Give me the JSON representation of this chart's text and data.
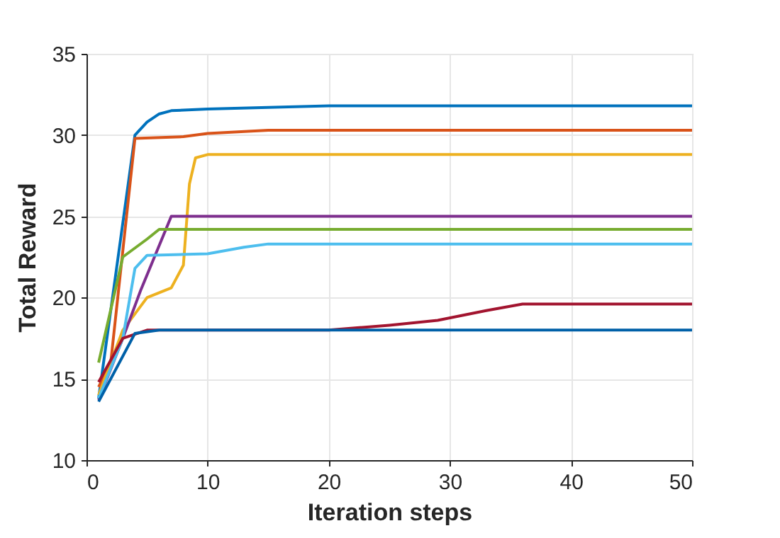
{
  "chart_data": {
    "type": "line",
    "xlabel": "Iteration steps",
    "ylabel": "Total Reward",
    "xlim": [
      0,
      50
    ],
    "xticks": [
      0,
      10,
      20,
      30,
      40,
      50
    ],
    "ylim": [
      10,
      35
    ],
    "yticks": [
      10,
      15,
      20,
      25,
      30,
      35
    ],
    "grid": true,
    "marker": "none",
    "line_style": "solid",
    "series": [
      {
        "color": "#0072bd",
        "x": [
          1,
          4,
          5,
          6,
          7,
          10,
          20,
          50
        ],
        "values": [
          13.8,
          30,
          30.8,
          31.3,
          31.5,
          31.6,
          31.8,
          31.8
        ]
      },
      {
        "color": "#d95319",
        "x": [
          1,
          2,
          4,
          8,
          10,
          15,
          50
        ],
        "values": [
          14.5,
          16,
          29.8,
          29.9,
          30.1,
          30.3,
          30.3
        ]
      },
      {
        "color": "#edb120",
        "x": [
          1,
          3,
          5,
          7,
          8,
          8.5,
          9,
          10,
          50
        ],
        "values": [
          14,
          18,
          20,
          20.6,
          22,
          27,
          28.6,
          28.8,
          28.8
        ]
      },
      {
        "color": "#7e2f8e",
        "x": [
          1,
          3,
          4.5,
          7,
          50
        ],
        "values": [
          13.7,
          17.5,
          20.5,
          25,
          25
        ]
      },
      {
        "color": "#77ac30",
        "x": [
          1,
          3,
          5,
          6,
          50
        ],
        "values": [
          16,
          22.5,
          23.6,
          24.2,
          24.2
        ]
      },
      {
        "color": "#4dbeee",
        "x": [
          1,
          3,
          4,
          5,
          10,
          13,
          15,
          50
        ],
        "values": [
          13.8,
          17.5,
          21.8,
          22.6,
          22.7,
          23.1,
          23.3,
          23.3
        ]
      },
      {
        "color": "#a2142f",
        "x": [
          1,
          3,
          5,
          20,
          25,
          29,
          33,
          36,
          50
        ],
        "values": [
          14.8,
          17.5,
          18,
          18,
          18.3,
          18.6,
          19.2,
          19.6,
          19.6
        ]
      },
      {
        "color": "#0060a8",
        "x": [
          1,
          4,
          6,
          50
        ],
        "values": [
          13.6,
          17.8,
          18,
          18
        ]
      }
    ]
  }
}
